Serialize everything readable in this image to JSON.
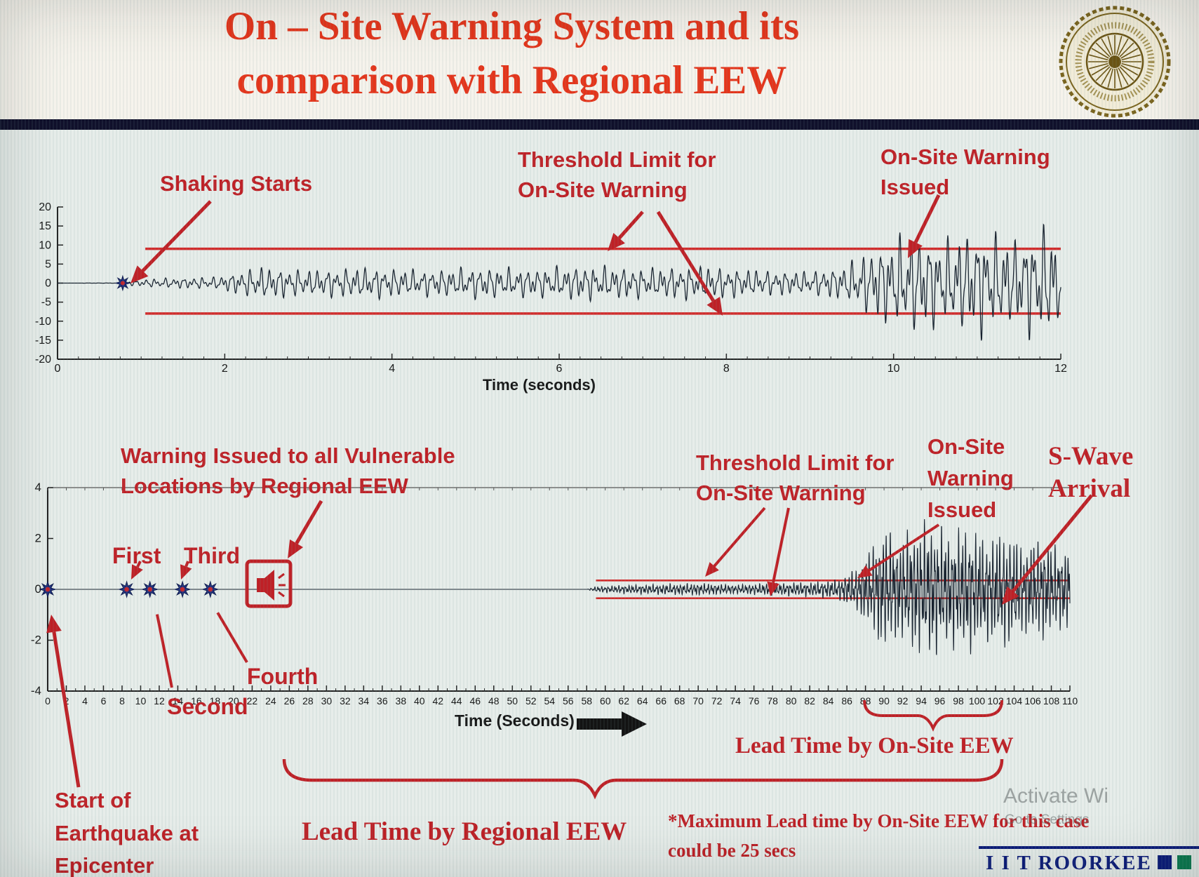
{
  "header": {
    "title_line1": "On – Site Warning System and its",
    "title_line2": "comparison with Regional EEW"
  },
  "chart_data": [
    {
      "type": "line",
      "name": "onsite-accelerogram",
      "xlabel": "Time (seconds)",
      "xlim": [
        0,
        12
      ],
      "ylim": [
        -20,
        20
      ],
      "x_ticks": [
        0,
        2,
        4,
        6,
        8,
        10,
        12
      ],
      "y_ticks": [
        20,
        15,
        10,
        5,
        0,
        -5,
        -10,
        -15,
        -20
      ],
      "grid": false,
      "thresholds": {
        "upper": 9,
        "lower": -8,
        "x_start": 1.05,
        "label": "Threshold Limit for On-Site Warning"
      },
      "shaking_start_time": 0.78,
      "onsite_warning_issued_time": 10.1,
      "amplitude_envelope": [
        [
          0,
          0
        ],
        [
          0.74,
          0.05
        ],
        [
          0.78,
          0.5
        ],
        [
          1.2,
          1.4
        ],
        [
          1.9,
          1.8
        ],
        [
          2.4,
          4.8
        ],
        [
          3,
          3.8
        ],
        [
          3.7,
          4.6
        ],
        [
          4.4,
          3.8
        ],
        [
          5,
          4.6
        ],
        [
          5.7,
          4.2
        ],
        [
          6.3,
          5.2
        ],
        [
          7,
          4.4
        ],
        [
          7.7,
          5.0
        ],
        [
          8.4,
          3.8
        ],
        [
          9,
          3.4
        ],
        [
          9.4,
          5.0
        ],
        [
          9.8,
          11
        ],
        [
          10.2,
          15
        ],
        [
          10.6,
          12.5
        ],
        [
          11,
          16
        ],
        [
          11.4,
          13
        ],
        [
          11.8,
          17
        ],
        [
          12,
          13
        ]
      ]
    },
    {
      "type": "line",
      "name": "regional-vs-onsite-record",
      "xlabel": "Time (Seconds)",
      "xlim": [
        0,
        110
      ],
      "ylim": [
        -4,
        4
      ],
      "x_tick_start": 0,
      "x_tick_end": 110,
      "x_tick_step": 2,
      "y_ticks": [
        4,
        2,
        0,
        -2,
        -4
      ],
      "grid": false,
      "thresholds": {
        "upper": 0.35,
        "lower": -0.35,
        "x_start": 59,
        "label": "Threshold Limit for On-Site Warning"
      },
      "p_wave_detection_times": [
        0,
        8.5,
        11,
        14.5,
        17.5
      ],
      "regional_warning_time": 24,
      "onsite_warning_issued_time": 87,
      "s_wave_arrival_time": 93,
      "amplitude_envelope": [
        [
          0,
          0
        ],
        [
          58,
          0
        ],
        [
          59,
          0.12
        ],
        [
          62,
          0.18
        ],
        [
          66,
          0.22
        ],
        [
          70,
          0.26
        ],
        [
          74,
          0.2
        ],
        [
          78,
          0.26
        ],
        [
          82,
          0.3
        ],
        [
          85,
          0.42
        ],
        [
          87,
          0.9
        ],
        [
          88.5,
          1.7
        ],
        [
          90,
          2.7
        ],
        [
          91.5,
          2.1
        ],
        [
          93,
          2.6
        ],
        [
          95,
          2.9
        ],
        [
          97,
          2.4
        ],
        [
          99,
          2.7
        ],
        [
          101,
          2.2
        ],
        [
          103,
          2.5
        ],
        [
          105,
          1.9
        ],
        [
          107,
          2.2
        ],
        [
          109,
          1.7
        ],
        [
          110,
          1.9
        ]
      ]
    }
  ],
  "annotations": {
    "shaking_starts": "Shaking Starts",
    "top_threshold_line1": "Threshold Limit for",
    "top_threshold_line2": "On-Site Warning",
    "top_warning_line1": "On-Site Warning",
    "top_warning_line2": "Issued",
    "regional_warning_line1": "Warning Issued to all Vulnerable",
    "regional_warning_line2": "Locations by Regional EEW",
    "p1": "First",
    "p2": "Second",
    "p3": "Third",
    "p4": "Fourth",
    "bottom_threshold_line1": "Threshold Limit for",
    "bottom_threshold_line2": "On-Site Warning",
    "bottom_warning_line1": "On-Site",
    "bottom_warning_line2": "Warning",
    "bottom_warning_line3": "Issued",
    "swave_line1": "S-Wave",
    "swave_line2": "Arrival",
    "lead_time_onsite": "Lead Time by On-Site EEW",
    "lead_time_regional": "Lead Time by Regional EEW",
    "note_line1": "*Maximum Lead time by On-Site EEW for this case",
    "note_line2": "could be 25 secs",
    "start_line1": "Start of",
    "start_line2": "Earthquake at",
    "start_line3": "Epicenter"
  },
  "footer": {
    "brand": "I I T ROORKEE",
    "watermark_line1": "Activate Wi",
    "watermark_line2": "Go to Settings"
  },
  "colors": {
    "title_red": "#e5341a",
    "annotation_red": "#bf2026",
    "threshold_red": "#d22b2b",
    "waveform": "#17212e",
    "marker_blue": "#203080",
    "brand_navy": "#0c1c7a",
    "brand_green": "#0a7a50"
  }
}
